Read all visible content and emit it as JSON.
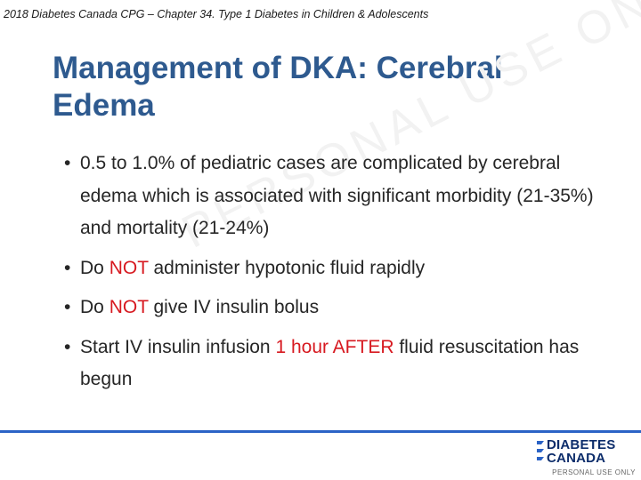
{
  "header": {
    "citation": "2018 Diabetes Canada CPG – Chapter 34. Type 1 Diabetes in Children & Adolescents"
  },
  "slide": {
    "title": "Management of DKA: Cerebral Edema"
  },
  "bullets": [
    {
      "text": "0.5 to 1.0% of pediatric cases are complicated by cerebral edema which is associated with significant morbidity (21-35%) and mortality (21-24%)"
    },
    {
      "pre": "Do ",
      "highlight": "NOT",
      "post": " administer hypotonic fluid rapidly"
    },
    {
      "pre": "Do ",
      "highlight": "NOT",
      "post": " give IV insulin bolus"
    },
    {
      "pre": "Start IV insulin infusion ",
      "highlight": "1 hour AFTER",
      "post": " fluid resuscitation has begun"
    }
  ],
  "watermark": {
    "text": "PERSONAL USE ONLY"
  },
  "logo": {
    "line1": "DIABETES",
    "line2": "CANADA"
  },
  "footer": {
    "note": "PERSONAL USE ONLY"
  },
  "colors": {
    "title": "#2e5a8f",
    "highlight": "#d71920",
    "rule": "#2b63c6",
    "logo": "#0d2d6b"
  }
}
